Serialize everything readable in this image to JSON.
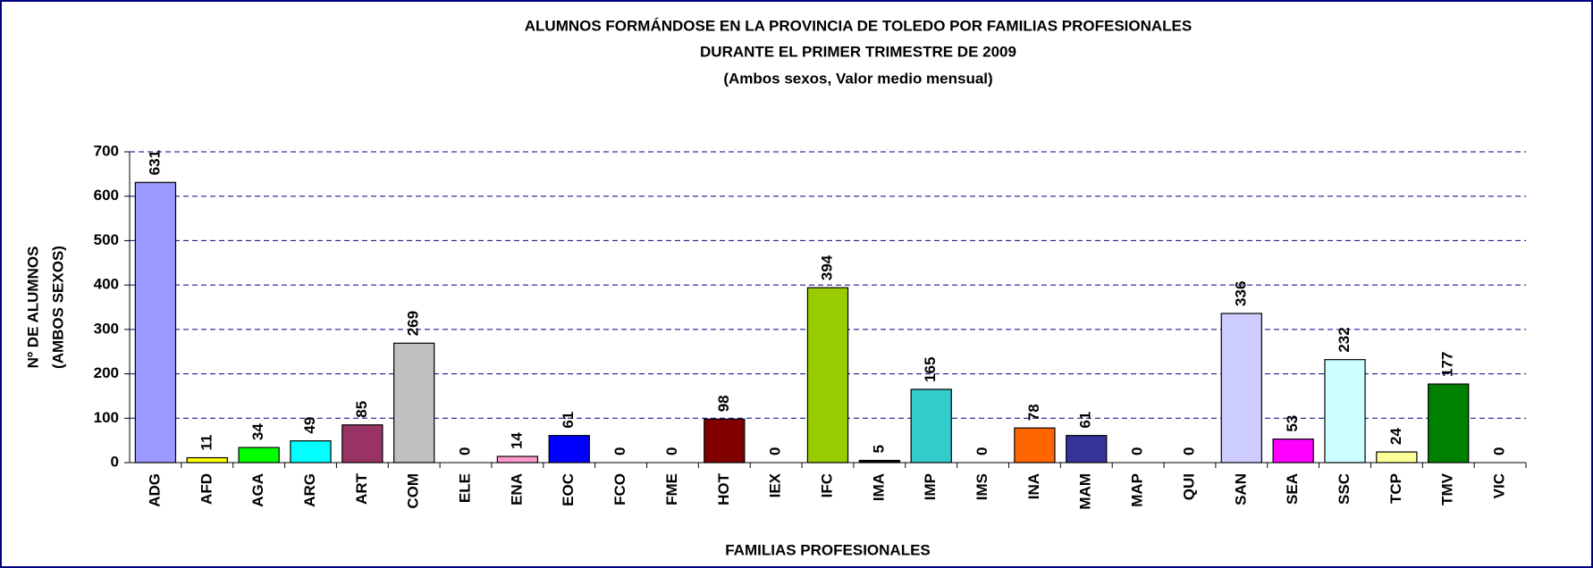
{
  "chart_data": {
    "type": "bar",
    "title": "ALUMNOS FORMÁNDOSE EN LA PROVINCIA DE TOLEDO POR FAMILIAS PROFESIONALES",
    "subtitle": "DURANTE EL PRIMER TRIMESTRE DE 2009",
    "note": "(Ambos sexos, Valor medio mensual)",
    "x_label": "FAMILIAS PROFESIONALES",
    "y_label": [
      "Nº DE ALUMNOS",
      "(AMBOS SEXOS)"
    ],
    "categories": [
      "ADG",
      "AFD",
      "AGA",
      "ARG",
      "ART",
      "COM",
      "ELE",
      "ENA",
      "EOC",
      "FCO",
      "FME",
      "HOT",
      "IEX",
      "IFC",
      "IMA",
      "IMP",
      "IMS",
      "INA",
      "MAM",
      "MAP",
      "QUI",
      "SAN",
      "SEA",
      "SSC",
      "TCP",
      "TMV",
      "VIC"
    ],
    "values": [
      631,
      11,
      34,
      49,
      85,
      269,
      0,
      14,
      61,
      0,
      0,
      98,
      0,
      394,
      5,
      165,
      0,
      78,
      61,
      0,
      0,
      336,
      53,
      232,
      24,
      177,
      0
    ],
    "colors": [
      "#9999ff",
      "#ffff00",
      "#00ff00",
      "#00ffff",
      "#993366",
      "#c0c0c0",
      "#c0c0c0",
      "#ff99cc",
      "#0000ff",
      "#c0c0c0",
      "#c0c0c0",
      "#800000",
      "#c0c0c0",
      "#99cc00",
      "#000000",
      "#33cccc",
      "#c0c0c0",
      "#ff6600",
      "#333399",
      "#c0c0c0",
      "#c0c0c0",
      "#ccccff",
      "#ff00ff",
      "#ccffff",
      "#ffff99",
      "#008000",
      "#c0c0c0"
    ],
    "ylim": [
      0,
      700
    ],
    "yticks": [
      0,
      100,
      200,
      300,
      400,
      500,
      600,
      700
    ],
    "grid": true
  }
}
